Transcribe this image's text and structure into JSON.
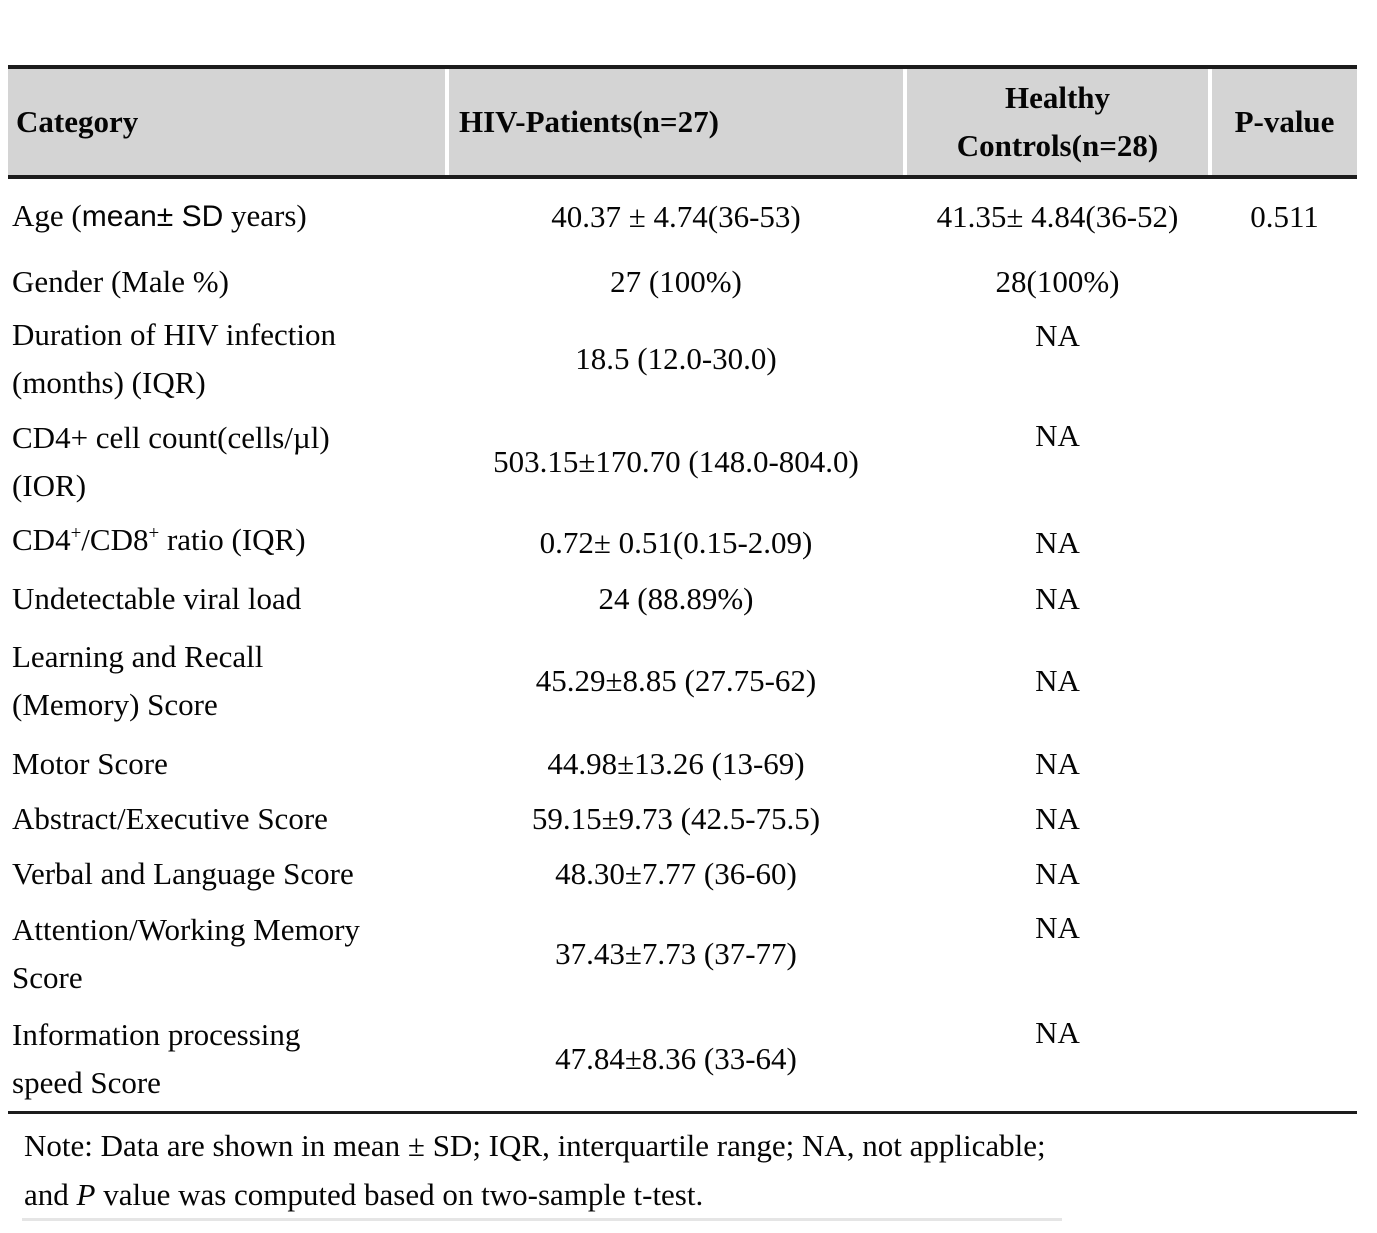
{
  "header": {
    "category": "Category",
    "hiv": "HIV-Patients(n=27)",
    "controls": "Healthy\nControls(n=28)",
    "pvalue": "P-value"
  },
  "rows": [
    {
      "category_lines": [
        [
          {
            "t": "Age ("
          },
          {
            "t": "mean± SD",
            "sans": true
          },
          {
            "t": " years)"
          }
        ]
      ],
      "hiv": "40.37 ± 4.74(36-53)",
      "control": "41.35± 4.84(36-52)",
      "p": "0.511"
    },
    {
      "category_lines": [
        [
          {
            "t": "Gender (Male %)"
          }
        ]
      ],
      "hiv": "27 (100%)",
      "control": "28(100%)",
      "p": ""
    },
    {
      "category_lines": [
        [
          {
            "t": "Duration of HIV infection"
          }
        ],
        [
          {
            "t": "(months) (IQR)"
          }
        ]
      ],
      "hiv": "18.5 (12.0-30.0)",
      "control": "NA",
      "p": ""
    },
    {
      "category_lines": [
        [
          {
            "t": "CD4+ cell count(cells/µl)"
          }
        ],
        [
          {
            "t": "(IOR)"
          }
        ]
      ],
      "hiv": "503.15±170.70 (148.0-804.0)",
      "control": "NA",
      "p": ""
    },
    {
      "category_lines": [
        [
          {
            "t": "CD4"
          },
          {
            "t": "+",
            "sup": true
          },
          {
            "t": "/CD8"
          },
          {
            "t": "+",
            "sup": true
          },
          {
            "t": " ratio (IQR)"
          }
        ]
      ],
      "hiv": "0.72± 0.51(0.15-2.09)",
      "control": "NA",
      "p": ""
    },
    {
      "category_lines": [
        [
          {
            "t": "Undetectable viral load"
          }
        ]
      ],
      "hiv": "24 (88.89%)",
      "control": "NA",
      "p": ""
    },
    {
      "category_lines": [
        [
          {
            "t": "Learning and Recall"
          }
        ],
        [
          {
            "t": "(Memory) Score"
          }
        ]
      ],
      "hiv": "45.29±8.85 (27.75-62)",
      "control": "NA",
      "p": ""
    },
    {
      "category_lines": [
        [
          {
            "t": "Motor Score"
          }
        ]
      ],
      "hiv": "44.98±13.26 (13-69)",
      "control": "NA",
      "p": ""
    },
    {
      "category_lines": [
        [
          {
            "t": "Abstract/Executive Score"
          }
        ]
      ],
      "hiv": "59.15±9.73 (42.5-75.5)",
      "control": "NA",
      "p": ""
    },
    {
      "category_lines": [
        [
          {
            "t": "Verbal and Language Score"
          }
        ]
      ],
      "hiv": "48.30±7.77 (36-60)",
      "control": "NA",
      "p": ""
    },
    {
      "category_lines": [
        [
          {
            "t": "Attention/Working Memory"
          }
        ],
        [
          {
            "t": "Score"
          }
        ]
      ],
      "hiv": "37.43±7.73 (37-77)",
      "control": "NA",
      "p": ""
    },
    {
      "category_lines": [
        [
          {
            "t": "Information processing"
          }
        ],
        [
          {
            "t": "speed Score"
          }
        ]
      ],
      "hiv": "47.84±8.36 (33-64)",
      "control": "NA",
      "p": ""
    }
  ],
  "note_lines": [
    [
      {
        "t": "Note: Data are shown in mean ± SD; IQR, interquartile range; NA, not applicable;"
      }
    ],
    [
      {
        "t": "and "
      },
      {
        "t": "P",
        "italic": true
      },
      {
        "t": " value was computed based on two-sample t-test."
      }
    ]
  ],
  "colors": {
    "header_bg": "#d4d4d4",
    "border": "#1c1c1c",
    "text": "#050505"
  }
}
